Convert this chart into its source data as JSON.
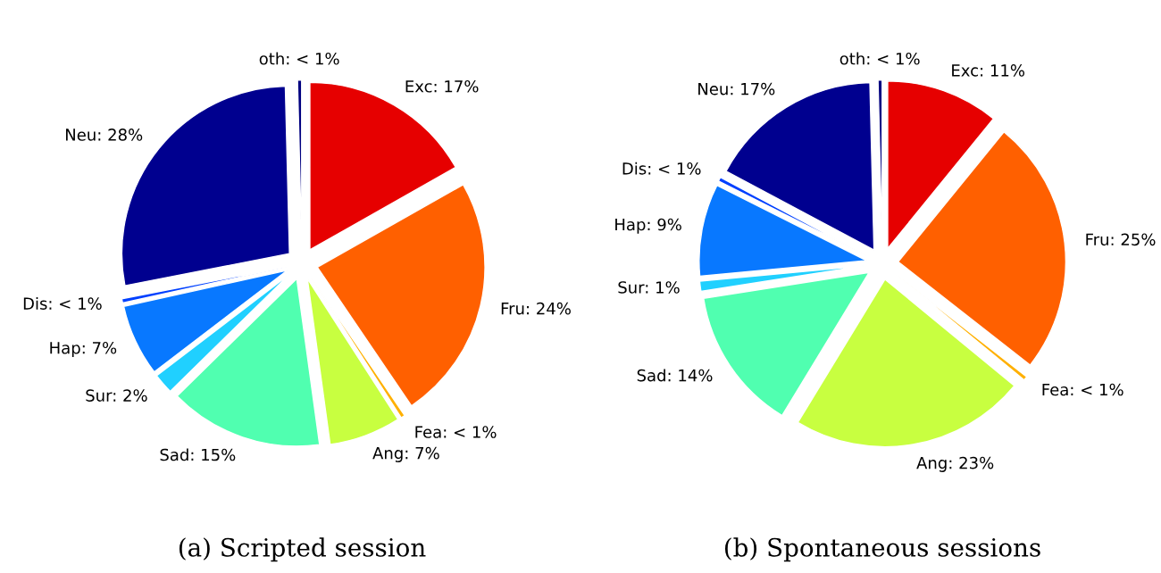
{
  "chart_data": [
    {
      "type": "pie",
      "title": "(a) Scripted session",
      "categories": [
        "Exc",
        "Fru",
        "Fea",
        "Ang",
        "Sad",
        "Sur",
        "Hap",
        "Dis",
        "Neu",
        "oth"
      ],
      "values": [
        17,
        24,
        0.4,
        7,
        15,
        2,
        7,
        0.4,
        28,
        0.4
      ],
      "value_labels": [
        "17%",
        "24%",
        "< 1%",
        "7%",
        "15%",
        "2%",
        "7%",
        "< 1%",
        "28%",
        "< 1%"
      ],
      "colors": [
        "#e60000",
        "#ff6000",
        "#ffb000",
        "#c8ff40",
        "#50ffb0",
        "#20d0ff",
        "#0878ff",
        "#0040ff",
        "#00008f",
        "#000080"
      ]
    },
    {
      "type": "pie",
      "title": "(b) Spontaneous sessions",
      "categories": [
        "Exc",
        "Fru",
        "Fea",
        "Ang",
        "Sad",
        "Sur",
        "Hap",
        "Dis",
        "Neu",
        "oth"
      ],
      "values": [
        11,
        25,
        0.4,
        23,
        14,
        1,
        9,
        0.4,
        17,
        0.4
      ],
      "value_labels": [
        "11%",
        "25%",
        "< 1%",
        "23%",
        "14%",
        "1%",
        "9%",
        "< 1%",
        "17%",
        "< 1%"
      ],
      "colors": [
        "#e60000",
        "#ff6000",
        "#ffb000",
        "#c8ff40",
        "#50ffb0",
        "#20d0ff",
        "#0878ff",
        "#0040ff",
        "#00008f",
        "#000080"
      ]
    }
  ]
}
